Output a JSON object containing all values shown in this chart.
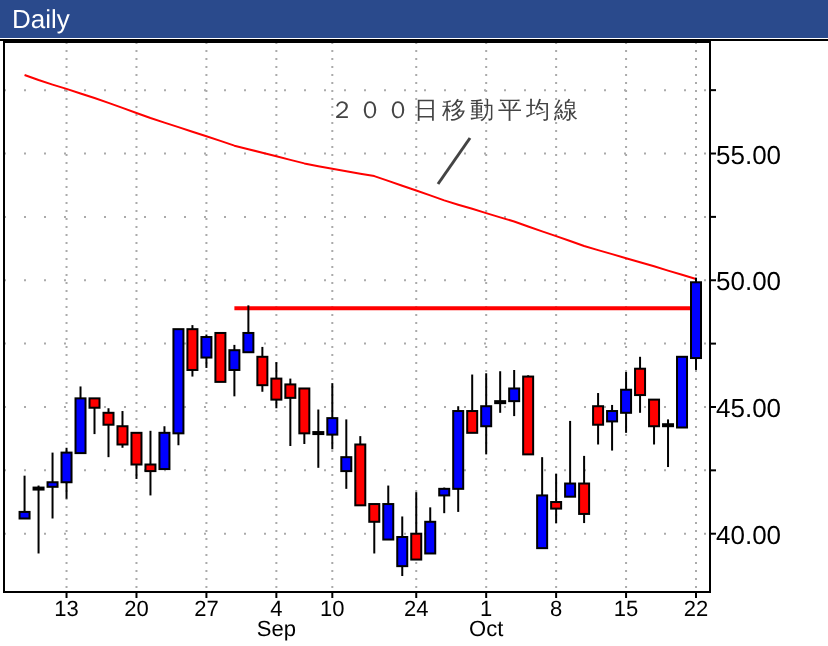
{
  "chart_data": {
    "type": "candlestick",
    "title": "Daily",
    "categories": [
      null,
      null,
      null,
      "13",
      null,
      null,
      null,
      null,
      "20",
      null,
      null,
      null,
      null,
      "27",
      null,
      null,
      null,
      null,
      "4",
      null,
      null,
      null,
      "10",
      null,
      null,
      null,
      null,
      null,
      "24",
      null,
      null,
      null,
      null,
      "1",
      null,
      null,
      null,
      null,
      "8",
      null,
      null,
      null,
      null,
      "15",
      null,
      null,
      null,
      null,
      "22"
    ],
    "ohlc": [
      [
        40.6,
        42.29,
        40.6,
        40.86
      ],
      [
        41.82,
        41.9,
        39.22,
        41.82
      ],
      [
        41.85,
        43.2,
        40.6,
        42.03
      ],
      [
        42.03,
        43.39,
        41.38,
        43.2
      ],
      [
        43.18,
        45.81,
        43.18,
        45.34
      ],
      [
        45.34,
        45.34,
        43.93,
        44.97
      ],
      [
        44.77,
        44.95,
        43.02,
        44.3
      ],
      [
        44.24,
        44.84,
        43.39,
        43.52
      ],
      [
        43.98,
        43.98,
        42.16,
        42.73
      ],
      [
        42.73,
        44.06,
        41.51,
        42.47
      ],
      [
        42.55,
        44.24,
        42.55,
        43.98
      ],
      [
        43.96,
        48.07,
        43.49,
        48.07
      ],
      [
        48.07,
        48.23,
        46.2,
        46.46
      ],
      [
        46.95,
        47.86,
        46.54,
        47.76
      ],
      [
        47.92,
        47.92,
        45.99,
        45.99
      ],
      [
        46.46,
        47.45,
        45.42,
        47.24
      ],
      [
        47.16,
        49.01,
        47.16,
        47.92
      ],
      [
        46.98,
        47.37,
        45.6,
        45.86
      ],
      [
        46.12,
        46.77,
        44.95,
        45.29
      ],
      [
        45.89,
        46.12,
        43.46,
        45.36
      ],
      [
        45.73,
        45.73,
        43.54,
        43.96
      ],
      [
        44.01,
        44.9,
        42.6,
        44.01
      ],
      [
        43.91,
        45.94,
        43.33,
        44.56
      ],
      [
        42.47,
        44.51,
        41.77,
        43.02
      ],
      [
        43.52,
        43.85,
        41.12,
        41.12
      ],
      [
        41.17,
        41.17,
        39.22,
        40.47
      ],
      [
        39.77,
        41.9,
        39.77,
        41.17
      ],
      [
        38.72,
        40.68,
        38.33,
        39.87
      ],
      [
        40.0,
        41.64,
        38.98,
        38.98
      ],
      [
        39.22,
        41.04,
        39.22,
        40.47
      ],
      [
        41.51,
        41.82,
        40.81,
        41.77
      ],
      [
        41.77,
        45.03,
        40.86,
        44.84
      ],
      [
        44.84,
        46.28,
        43.98,
        43.98
      ],
      [
        44.24,
        46.33,
        43.13,
        45.03
      ],
      [
        45.23,
        46.41,
        44.77,
        45.23
      ],
      [
        45.23,
        46.46,
        44.64,
        45.73
      ],
      [
        46.2,
        46.25,
        43.13,
        43.13
      ],
      [
        39.43,
        43.02,
        39.43,
        41.51
      ],
      [
        41.25,
        42.37,
        40.42,
        40.99
      ],
      [
        41.46,
        44.45,
        41.46,
        41.98
      ],
      [
        41.98,
        43.07,
        40.42,
        40.78
      ],
      [
        45.03,
        45.55,
        43.52,
        44.3
      ],
      [
        44.43,
        45.08,
        43.28,
        44.84
      ],
      [
        44.77,
        46.38,
        43.98,
        45.68
      ],
      [
        46.51,
        46.98,
        44.77,
        45.47
      ],
      [
        45.29,
        45.29,
        43.52,
        44.24
      ],
      [
        44.32,
        44.51,
        42.63,
        44.32
      ],
      [
        44.19,
        46.98,
        44.19,
        46.98
      ],
      [
        46.93,
        50.1,
        46.46,
        49.92
      ]
    ],
    "colors": [
      "#0000ff",
      "#0000ff",
      "#0000ff",
      "#0000ff",
      "#0000ff",
      "#ff0000",
      "#ff0000",
      "#ff0000",
      "#ff0000",
      "#ff0000",
      "#0000ff",
      "#0000ff",
      "#ff0000",
      "#0000ff",
      "#ff0000",
      "#0000ff",
      "#0000ff",
      "#ff0000",
      "#ff0000",
      "#ff0000",
      "#ff0000",
      "#0000ff",
      "#0000ff",
      "#0000ff",
      "#ff0000",
      "#ff0000",
      "#0000ff",
      "#0000ff",
      "#ff0000",
      "#0000ff",
      "#0000ff",
      "#0000ff",
      "#ff0000",
      "#0000ff",
      "#0000ff",
      "#0000ff",
      "#ff0000",
      "#0000ff",
      "#ff0000",
      "#0000ff",
      "#ff0000",
      "#ff0000",
      "#0000ff",
      "#0000ff",
      "#ff0000",
      "#ff0000",
      "#0000ff",
      "#0000ff",
      "#0000ff"
    ],
    "series": [
      {
        "type": "line",
        "color": "#ff0000",
        "values": [
          58.1,
          57.9,
          57.72,
          57.55,
          57.37,
          57.19,
          57.0,
          56.8,
          56.6,
          56.4,
          56.22,
          56.04,
          55.86,
          55.68,
          55.5,
          55.31,
          55.17,
          55.03,
          54.89,
          54.75,
          54.61,
          54.5,
          54.4,
          54.3,
          54.2,
          54.11,
          53.92,
          53.73,
          53.54,
          53.35,
          53.15,
          52.98,
          52.82,
          52.65,
          52.48,
          52.32,
          52.12,
          51.93,
          51.74,
          51.55,
          51.35,
          51.19,
          51.03,
          50.87,
          50.71,
          50.55,
          50.38,
          50.22,
          50.05
        ]
      },
      {
        "type": "line",
        "color": "#ff0000",
        "values": [
          null,
          null,
          null,
          null,
          null,
          null,
          null,
          null,
          null,
          null,
          null,
          null,
          null,
          null,
          null,
          48.9,
          48.9,
          48.9,
          48.9,
          48.9,
          48.9,
          48.9,
          48.9,
          48.9,
          48.9,
          48.9,
          48.9,
          48.9,
          48.9,
          48.9,
          48.9,
          48.9,
          48.9,
          48.9,
          48.9,
          48.9,
          48.9,
          48.9,
          48.9,
          48.9,
          48.9,
          48.9,
          48.9,
          48.9,
          48.9,
          48.9,
          48.9,
          48.9,
          48.9
        ]
      }
    ],
    "ylim": [
      37.7,
      59.4
    ],
    "yticks": [
      {
        "value": 40,
        "label": "40.00"
      },
      {
        "value": 42.5,
        "label": null
      },
      {
        "value": 45,
        "label": "45.00"
      },
      {
        "value": 47.5,
        "label": null
      },
      {
        "value": 50,
        "label": "50.00"
      },
      {
        "value": 52.5,
        "label": null
      },
      {
        "value": 55,
        "label": "55.00"
      },
      {
        "value": 57.5,
        "label": null
      }
    ],
    "grid": true,
    "annotations": [
      "２００日移動平均線",
      "Sep",
      "Oct"
    ]
  }
}
